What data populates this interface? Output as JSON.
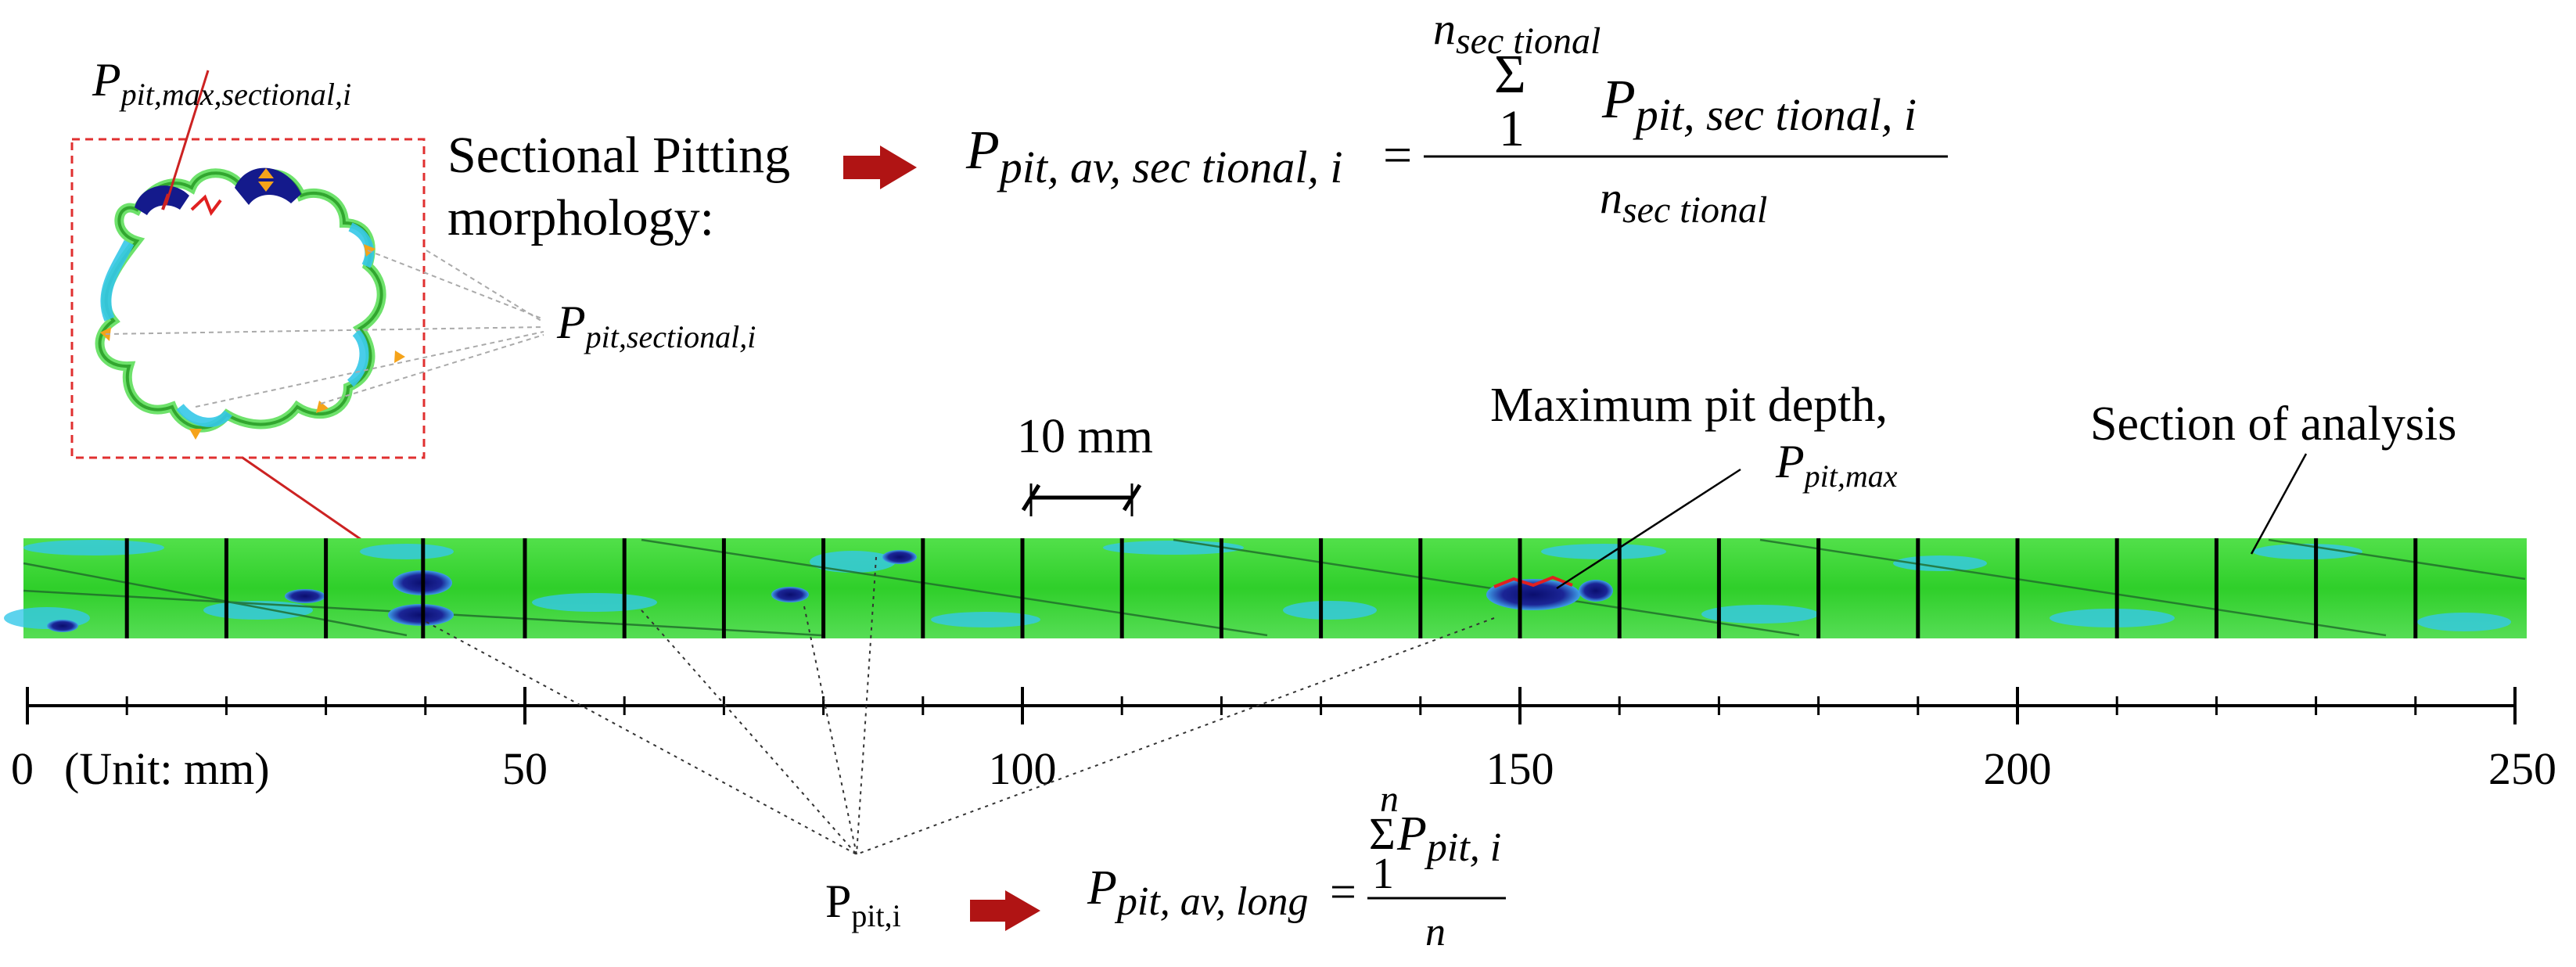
{
  "labels": {
    "max_sectional_symbol": "P",
    "max_sectional_sub": "pit,max,sectional,i",
    "sectional_title_line1": "Sectional Pitting",
    "sectional_title_line2": "morphology:",
    "sectional_symbol": "P",
    "sectional_sub": "pit,sectional,i",
    "scale_bar_text": "10 mm",
    "max_pit_line1": "Maximum pit depth,",
    "max_pit_symbol": "P",
    "max_pit_sub": "pit,max",
    "section_of_analysis": "Section of analysis",
    "ppit_i_symbol": "P",
    "ppit_i_sub": "pit,i"
  },
  "formula_sectional": {
    "lhs_symbol": "P",
    "lhs_sub": "pit, av, sec tional, i",
    "equals": "=",
    "sum_top_n": "n",
    "sum_top_sub": "sec tional",
    "sigma": "Σ",
    "sum_bottom": "1",
    "term_symbol": "P",
    "term_sub": "pit, sec tional, i",
    "denominator_n": "n",
    "denominator_sub": "sec tional"
  },
  "formula_long": {
    "lhs_symbol": "P",
    "lhs_sub": "pit, av, long",
    "equals": "=",
    "sum_top": "n",
    "sigma": "Σ",
    "sum_bottom": "1",
    "term_symbol": "P",
    "term_sub": "pit, i",
    "denominator": "n"
  },
  "axis": {
    "unit_label": "(Unit: mm)",
    "range": [
      0,
      250
    ],
    "major_ticks": [
      "0",
      "50",
      "100",
      "150",
      "200",
      "250"
    ],
    "minor_step": 10
  },
  "colors": {
    "specimen_green": "#35d42b",
    "pit_dark_blue": "#141a8c",
    "pit_cyan": "#35c8e8",
    "arrow_red": "#b01414",
    "inset_border": "#e03030",
    "orange_marker": "#f5a31a",
    "leader_gray": "#555555"
  }
}
